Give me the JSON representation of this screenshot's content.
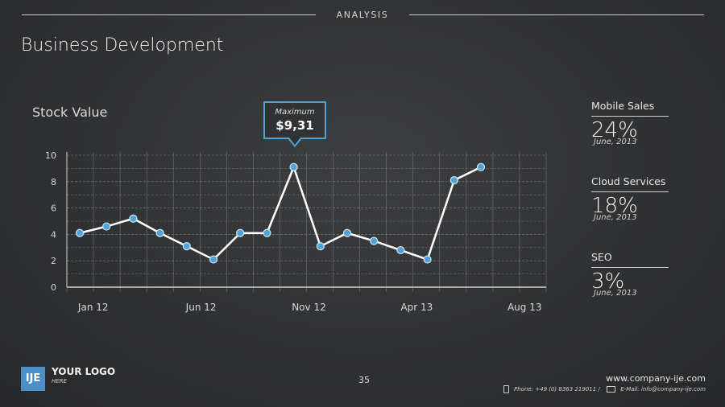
{
  "header": {
    "section_label": "ANALYSIS",
    "title": "Business Development"
  },
  "chart_data": {
    "type": "line",
    "title": "Stock Value",
    "y_ticks": [
      0,
      2,
      4,
      6,
      8,
      10
    ],
    "ylim": [
      0,
      10
    ],
    "x_tick_labels": [
      "Jan 12",
      "Jun 12",
      "Nov 12",
      "Apr 13",
      "Aug 13"
    ],
    "values": [
      4.1,
      4.6,
      5.2,
      4.1,
      3.1,
      2.1,
      4.1,
      4.1,
      9.1,
      3.1,
      4.1,
      3.5,
      2.8,
      2.1,
      8.1,
      9.1
    ],
    "grid": true,
    "line_color": "#ffffff",
    "marker_color": "#4fa3d6",
    "annotation": {
      "label": "Maximum",
      "value": "$9,31"
    }
  },
  "stats": [
    {
      "label": "Mobile Sales",
      "value": "24%",
      "date": "June, 2013"
    },
    {
      "label": "Cloud Services",
      "value": "18%",
      "date": "June, 2013"
    },
    {
      "label": "SEO",
      "value": "3%",
      "date": "June, 2013"
    }
  ],
  "footer": {
    "logo_mark": "IJE",
    "logo_text": "YOUR LOGO",
    "logo_sub": "HERE",
    "page_number": "35",
    "website": "www.company-ije.com",
    "phone": "Phone: +49 (0) 8363 219011 /",
    "email": "E-Mail: info@company-ije.com"
  }
}
